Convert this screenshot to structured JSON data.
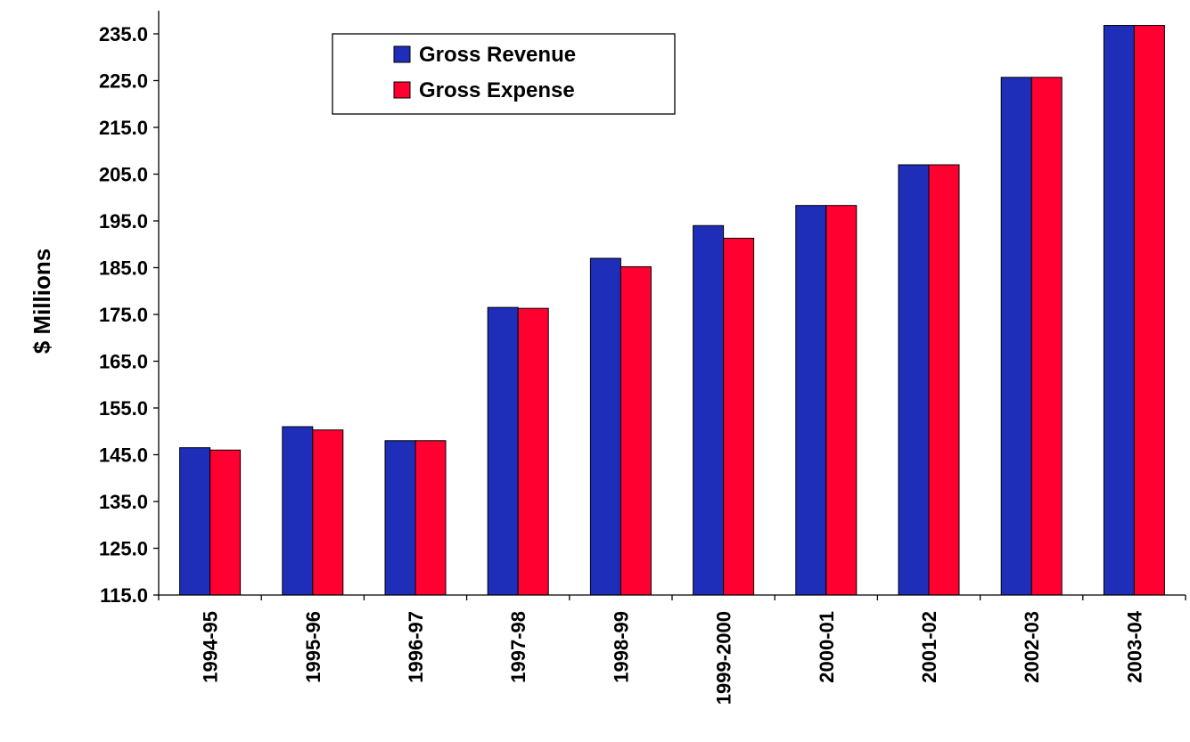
{
  "chart_data": {
    "type": "bar",
    "title": "",
    "xlabel": "",
    "ylabel": "$ Millions",
    "ylim": [
      115,
      240
    ],
    "yticks": [
      "115.0",
      "125.0",
      "135.0",
      "145.0",
      "155.0",
      "165.0",
      "175.0",
      "185.0",
      "195.0",
      "205.0",
      "215.0",
      "225.0",
      "235.0"
    ],
    "categories": [
      "1994-95",
      "1995-96",
      "1996-97",
      "1997-98",
      "1998-99",
      "1999-2000",
      "2000-01",
      "2001-02",
      "2002-03",
      "2003-04"
    ],
    "series": [
      {
        "name": "Gross Revenue",
        "color": "#1f2eb8",
        "values": [
          146.5,
          151.0,
          148.0,
          176.5,
          187.0,
          194.0,
          198.3,
          207.0,
          225.7,
          236.8
        ]
      },
      {
        "name": "Gross Expense",
        "color": "#ff0030",
        "values": [
          146.0,
          150.3,
          148.0,
          176.3,
          185.2,
          191.3,
          198.3,
          207.0,
          225.7,
          236.8
        ]
      }
    ],
    "grid": false,
    "legend_position": "top-left"
  }
}
